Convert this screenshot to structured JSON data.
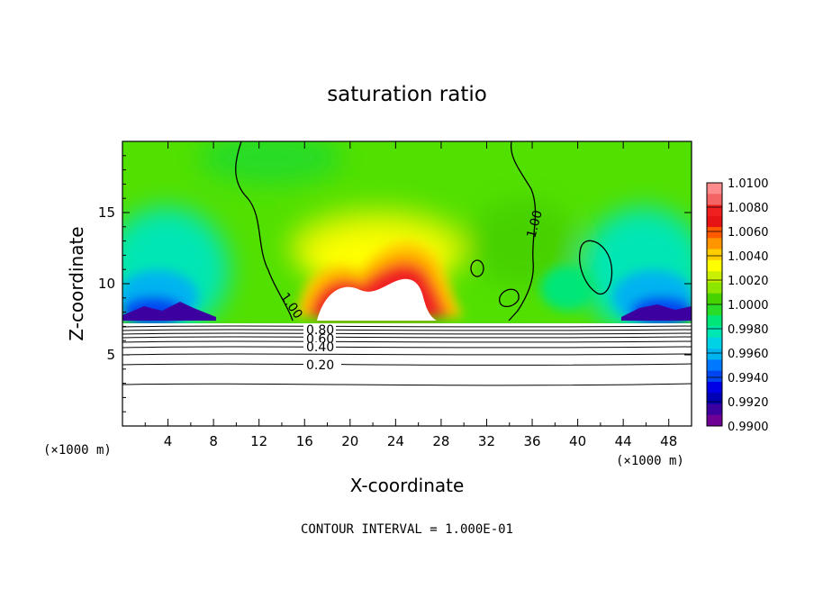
{
  "chart_data": {
    "type": "heatmap",
    "title": "saturation ratio",
    "xlabel": "X-coordinate",
    "ylabel": "Z-coordinate",
    "x_unit": "(×1000 m)",
    "xlim": [
      0,
      50
    ],
    "ylim": [
      0,
      20
    ],
    "x_ticks": [
      4,
      8,
      12,
      16,
      20,
      24,
      28,
      32,
      36,
      40,
      44,
      48
    ],
    "y_ticks": [
      5,
      10,
      15
    ],
    "colorbar": {
      "min": 0.99,
      "max": 1.01,
      "labels": [
        "1.0100",
        "1.0080",
        "1.0060",
        "1.0040",
        "1.0020",
        "1.0000",
        "0.9980",
        "0.9960",
        "0.9940",
        "0.9920",
        "0.9900"
      ],
      "colors": [
        "#ff8c8c",
        "#f56464",
        "#f02020",
        "#e61414",
        "#ff5a00",
        "#ff9600",
        "#ffcd00",
        "#ffff00",
        "#c8f000",
        "#8ce600",
        "#46d200",
        "#28dc28",
        "#00e678",
        "#00e6b4",
        "#00d2e6",
        "#00b4f0",
        "#0078ff",
        "#0046f0",
        "#0000e6",
        "#0000b4",
        "#3c00a0",
        "#6e0096"
      ]
    },
    "contours": [
      {
        "label": "1.00",
        "level": 1.0
      },
      {
        "label": "0.80",
        "level": 0.8
      },
      {
        "label": "0.60",
        "level": 0.6
      },
      {
        "label": "0.40",
        "level": 0.4
      },
      {
        "label": "0.20",
        "level": 0.2
      }
    ],
    "contour_interval_note": "CONTOUR INTERVAL = 1.000E-01"
  }
}
